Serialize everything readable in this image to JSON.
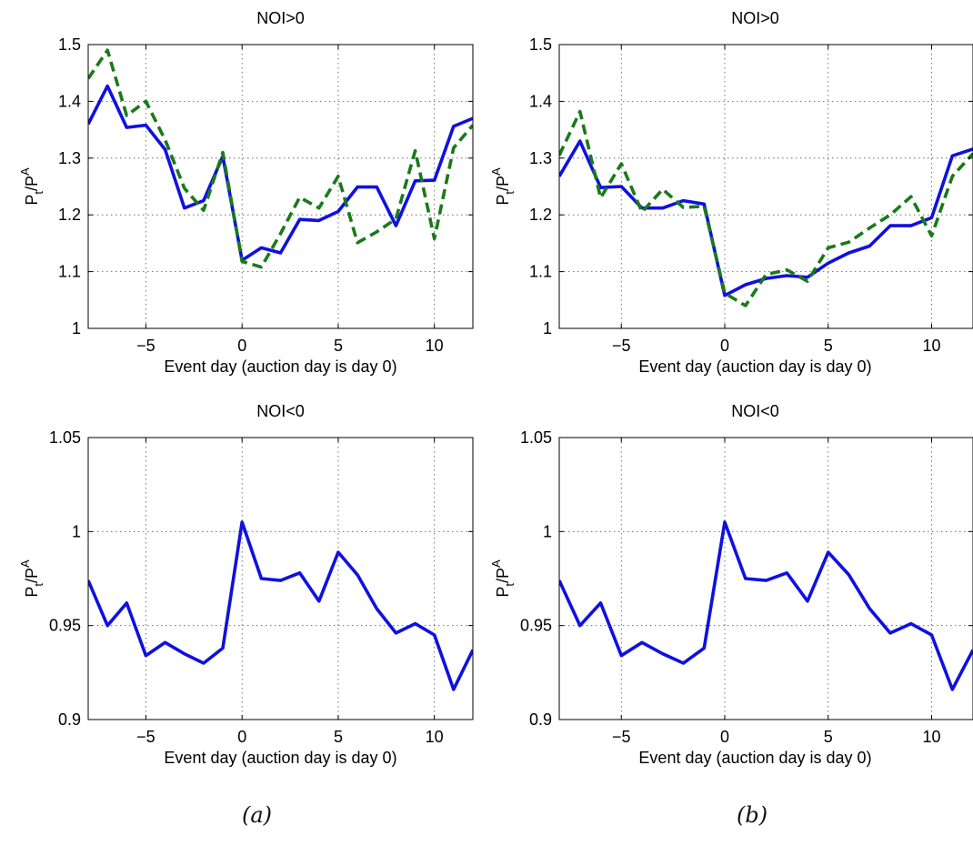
{
  "figure": {
    "panel_captions": [
      "(a)",
      "(b)"
    ]
  },
  "chart_data": [
    {
      "type": "line",
      "panel": "a-top",
      "title": "NOI>0",
      "xlabel": "Event day (auction day is day 0)",
      "ylabel": "P_t/P^A",
      "xlim": [
        -8,
        12
      ],
      "ylim": [
        1,
        1.5
      ],
      "xticks": [
        -5,
        0,
        5,
        10
      ],
      "xtick_labels": [
        "−5",
        "0",
        "5",
        "10"
      ],
      "yticks": [
        1,
        1.1,
        1.2,
        1.3,
        1.4,
        1.5
      ],
      "ytick_labels": [
        "1",
        "1.1",
        "1.2",
        "1.3",
        "1.4",
        "1.5"
      ],
      "grid": true,
      "x": [
        -8,
        -7,
        -6,
        -5,
        -4,
        -3,
        -2,
        -1,
        0,
        1,
        2,
        3,
        4,
        5,
        6,
        7,
        8,
        9,
        10,
        11,
        12
      ],
      "series": [
        {
          "values": [
            1.36,
            1.427,
            1.354,
            1.358,
            1.315,
            1.212,
            1.225,
            1.303,
            1.12,
            1.142,
            1.133,
            1.192,
            1.19,
            1.206,
            1.249,
            1.249,
            1.181,
            1.26,
            1.261,
            1.356,
            1.37
          ],
          "color": "#1010e0",
          "style": "solid"
        },
        {
          "values": [
            1.44,
            1.49,
            1.375,
            1.4,
            1.332,
            1.247,
            1.208,
            1.31,
            1.118,
            1.108,
            1.167,
            1.231,
            1.212,
            1.268,
            1.151,
            1.17,
            1.193,
            1.313,
            1.158,
            1.318,
            1.358
          ],
          "color": "#1a7a1a",
          "style": "dashed"
        }
      ]
    },
    {
      "type": "line",
      "panel": "b-top",
      "title": "NOI>0",
      "xlabel": "Event day (auction day is day 0)",
      "ylabel": "P_t/P^A",
      "xlim": [
        -8,
        12
      ],
      "ylim": [
        1,
        1.5
      ],
      "xticks": [
        -5,
        0,
        5,
        10
      ],
      "xtick_labels": [
        "−5",
        "0",
        "5",
        "10"
      ],
      "yticks": [
        1,
        1.1,
        1.2,
        1.3,
        1.4,
        1.5
      ],
      "ytick_labels": [
        "1",
        "1.1",
        "1.2",
        "1.3",
        "1.4",
        "1.5"
      ],
      "grid": true,
      "x": [
        -8,
        -7,
        -6,
        -5,
        -4,
        -3,
        -2,
        -1,
        0,
        1,
        2,
        3,
        4,
        5,
        6,
        7,
        8,
        9,
        10,
        11,
        12
      ],
      "series": [
        {
          "values": [
            1.268,
            1.33,
            1.248,
            1.25,
            1.212,
            1.212,
            1.225,
            1.219,
            1.058,
            1.077,
            1.088,
            1.093,
            1.09,
            1.115,
            1.133,
            1.145,
            1.181,
            1.181,
            1.195,
            1.304,
            1.316
          ],
          "color": "#1010e0",
          "style": "solid"
        },
        {
          "values": [
            1.305,
            1.382,
            1.23,
            1.29,
            1.205,
            1.245,
            1.213,
            1.215,
            1.062,
            1.04,
            1.095,
            1.103,
            1.083,
            1.142,
            1.152,
            1.177,
            1.2,
            1.232,
            1.163,
            1.268,
            1.308
          ],
          "color": "#1a7a1a",
          "style": "dashed"
        }
      ]
    },
    {
      "type": "line",
      "panel": "a-bottom",
      "title": "NOI<0",
      "xlabel": "Event day (auction day is day 0)",
      "ylabel": "P_t/P^A",
      "xlim": [
        -8,
        12
      ],
      "ylim": [
        0.9,
        1.05
      ],
      "xticks": [
        -5,
        0,
        5,
        10
      ],
      "xtick_labels": [
        "−5",
        "0",
        "5",
        "10"
      ],
      "yticks": [
        0.9,
        0.95,
        1,
        1.05
      ],
      "ytick_labels": [
        "0.9",
        "0.95",
        "1",
        "1.05"
      ],
      "grid": true,
      "x": [
        -8,
        -7,
        -6,
        -5,
        -4,
        -3,
        -2,
        -1,
        0,
        1,
        2,
        3,
        4,
        5,
        6,
        7,
        8,
        9,
        10,
        11,
        12
      ],
      "series": [
        {
          "values": [
            0.974,
            0.95,
            0.962,
            0.934,
            0.941,
            0.935,
            0.93,
            0.938,
            1.005,
            0.975,
            0.974,
            0.978,
            0.963,
            0.989,
            0.977,
            0.959,
            0.946,
            0.951,
            0.945,
            0.916,
            0.937
          ],
          "color": "#1010e0",
          "style": "solid"
        }
      ]
    },
    {
      "type": "line",
      "panel": "b-bottom",
      "title": "NOI<0",
      "xlabel": "Event day (auction day is day 0)",
      "ylabel": "P_t/P^A",
      "xlim": [
        -8,
        12
      ],
      "ylim": [
        0.9,
        1.05
      ],
      "xticks": [
        -5,
        0,
        5,
        10
      ],
      "xtick_labels": [
        "−5",
        "0",
        "5",
        "10"
      ],
      "yticks": [
        0.9,
        0.95,
        1,
        1.05
      ],
      "ytick_labels": [
        "0.9",
        "0.95",
        "1",
        "1.05"
      ],
      "grid": true,
      "x": [
        -8,
        -7,
        -6,
        -5,
        -4,
        -3,
        -2,
        -1,
        0,
        1,
        2,
        3,
        4,
        5,
        6,
        7,
        8,
        9,
        10,
        11,
        12
      ],
      "series": [
        {
          "values": [
            0.974,
            0.95,
            0.962,
            0.934,
            0.941,
            0.935,
            0.93,
            0.938,
            1.005,
            0.975,
            0.974,
            0.978,
            0.963,
            0.989,
            0.977,
            0.959,
            0.946,
            0.951,
            0.945,
            0.916,
            0.937
          ],
          "color": "#1010e0",
          "style": "solid"
        }
      ]
    }
  ]
}
